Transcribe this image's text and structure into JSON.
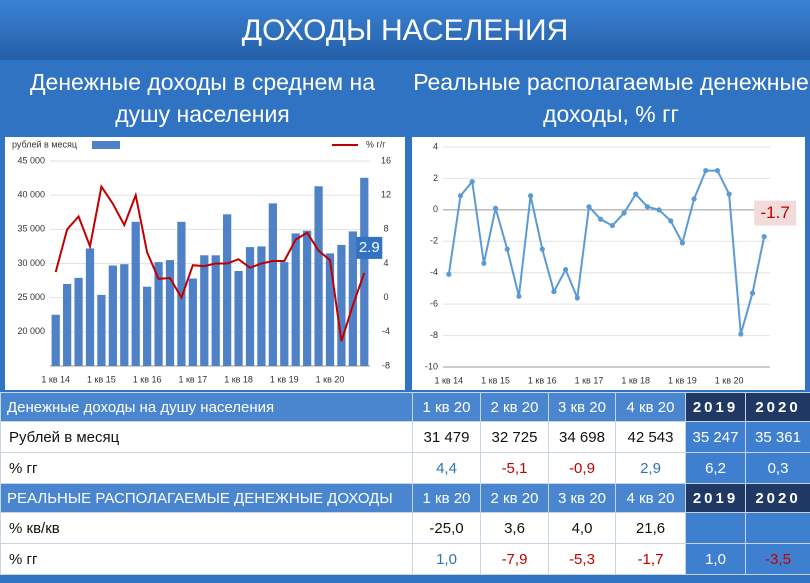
{
  "header": {
    "title": "ДОХОДЫ НАСЕЛЕНИЯ",
    "left_subtitle": "Денежные доходы в среднем на душу населения",
    "right_subtitle": "Реальные располагаемые денежные доходы, % гг"
  },
  "chart_data": [
    {
      "type": "bar",
      "categories": [
        "1 кв 14",
        null,
        null,
        null,
        "1 кв 15",
        null,
        null,
        null,
        "1 кв 16",
        null,
        null,
        null,
        "1 кв 17",
        null,
        null,
        null,
        "1 кв 18",
        null,
        null,
        null,
        "1 кв 19",
        null,
        null,
        null,
        "1 кв 20",
        null,
        null,
        null
      ],
      "series": [
        {
          "name": "рублей в месяц",
          "type": "bar",
          "color": "#4f81c7",
          "values": [
            22500,
            27000,
            27900,
            32200,
            25400,
            29700,
            29900,
            36100,
            26600,
            30200,
            30500,
            36100,
            27800,
            31200,
            31200,
            37200,
            28900,
            32400,
            32500,
            38800,
            30200,
            34400,
            34800,
            41300,
            31479,
            32725,
            34698,
            42543
          ]
        },
        {
          "name": "% г/г",
          "type": "line",
          "axis": "y2",
          "color": "#c00000",
          "values": [
            3,
            8,
            9.5,
            6,
            13,
            11,
            8.5,
            12,
            5.3,
            2.2,
            2.3,
            0,
            3.8,
            3.7,
            4,
            4,
            4.5,
            3.5,
            4,
            4.3,
            4.3,
            6.8,
            7.6,
            5.5,
            4.4,
            -5.1,
            -0.9,
            2.9
          ]
        }
      ],
      "ylim": [
        15000,
        45000
      ],
      "yticks": [
        {
          "value": 20000,
          "label": "20 000"
        },
        {
          "value": 25000,
          "label": "25 000"
        },
        {
          "value": 30000,
          "label": "30 000"
        },
        {
          "value": 35000,
          "label": "35 000"
        },
        {
          "value": 40000,
          "label": "40 000"
        },
        {
          "value": 45000,
          "label": "45 000"
        }
      ],
      "y2lim": [
        -8,
        16
      ],
      "y2ticks": [
        -8,
        -4,
        0,
        4,
        8,
        12,
        16
      ],
      "grid": true,
      "legend": "top"
    },
    {
      "type": "line",
      "categories": [
        "1 кв 14",
        null,
        null,
        null,
        "1 кв 15",
        null,
        null,
        null,
        "1 кв 16",
        null,
        null,
        null,
        "1 кв 17",
        null,
        null,
        null,
        "1 кв 18",
        null,
        null,
        null,
        "1 кв 19",
        null,
        null,
        null,
        "1 кв 20",
        null,
        null,
        null
      ],
      "series": [
        {
          "name": "Реальные располагаемые денежные доходы",
          "color": "#5b9bd5",
          "values": [
            -4.1,
            0.9,
            1.8,
            -3.4,
            0.1,
            -2.5,
            -5.5,
            0.9,
            -2.5,
            -5.2,
            -3.8,
            -5.6,
            0.2,
            -0.6,
            -1.0,
            -0.2,
            1.0,
            0.2,
            0.0,
            -0.7,
            -2.1,
            0.7,
            2.5,
            2.5,
            1.0,
            -7.9,
            -5.3,
            -1.7
          ]
        }
      ],
      "ylim": [
        -10,
        4
      ],
      "yticks": [
        -10,
        -8,
        -6,
        -4,
        -2,
        0,
        2,
        4
      ],
      "grid": true
    }
  ],
  "table": {
    "sections": [
      {
        "header": [
          "Денежные доходы на душу населения",
          "1 кв 20",
          "2 кв 20",
          "3 кв 20",
          "4 кв 20",
          "2019",
          "2020"
        ],
        "rows": [
          [
            "Рублей в месяц",
            "31 479",
            "32 725",
            "34 698",
            "42 543",
            "35 247",
            "35 361"
          ],
          [
            "% гг",
            "4,4",
            "-5,1",
            "-0,9",
            "2,9",
            "6,2",
            "0,3"
          ]
        ]
      },
      {
        "header": [
          "РЕАЛЬНЫЕ РАСПОЛАГАЕМЫЕ ДЕНЕЖНЫЕ ДОХОДЫ",
          "1 кв 20",
          "2 кв 20",
          "3 кв 20",
          "4 кв 20",
          "2019",
          "2020"
        ],
        "rows": [
          [
            "% кв/кв",
            "-25,0",
            "3,6",
            "4,0",
            "21,6"
          ],
          [
            "% гг",
            "1,0",
            "-7,9",
            "-5,3",
            "-1,7",
            "1,0",
            "-3,5"
          ]
        ]
      }
    ]
  }
}
